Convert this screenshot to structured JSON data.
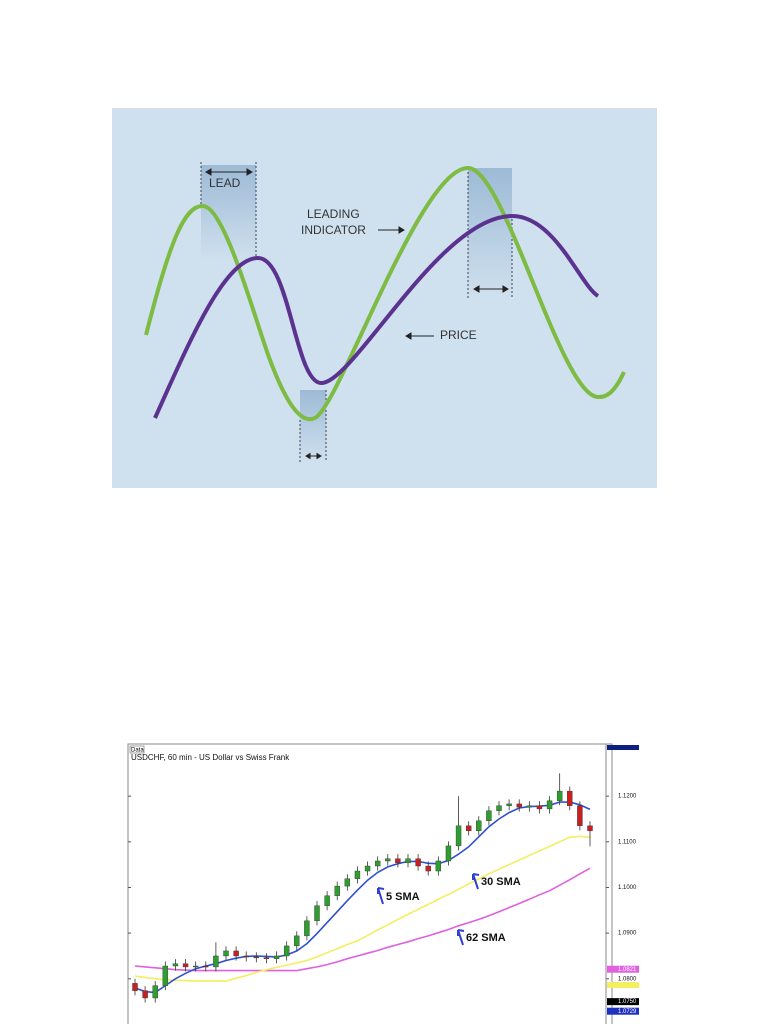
{
  "diagram": {
    "lead": "LEAD",
    "leading_indicator": [
      "LEADING",
      "INDICATOR"
    ],
    "price": "PRICE"
  },
  "chart_data": {
    "type": "candlestick",
    "tag": "Data",
    "title": "USDCHF, 60 min - US Dollar vs Swiss Frank",
    "up_color": "#2e9e2e",
    "down_color": "#c82020",
    "open": [
      1.079,
      1.0774,
      1.0758,
      1.0785,
      1.0828,
      1.0833,
      1.0826,
      1.0828,
      1.0826,
      1.085,
      1.0861,
      1.085,
      1.0848,
      1.0846,
      1.0844,
      1.085,
      1.0872,
      1.0894,
      1.0927,
      1.096,
      1.0982,
      1.1003,
      1.1019,
      1.1036,
      1.1047,
      1.1058,
      1.1063,
      1.1054,
      1.1063,
      1.1047,
      1.1036,
      1.1058,
      1.1091,
      1.1135,
      1.1124,
      1.1146,
      1.1168,
      1.1179,
      1.1183,
      1.1176,
      1.1179,
      1.1172,
      1.119,
      1.1211,
      1.1179,
      1.1135
    ],
    "high": [
      1.08,
      1.0784,
      1.0795,
      1.0838,
      1.0843,
      1.0843,
      1.0838,
      1.0838,
      1.088,
      1.0871,
      1.0871,
      1.086,
      1.0858,
      1.0856,
      1.086,
      1.0882,
      1.0904,
      1.0937,
      1.097,
      1.0992,
      1.1013,
      1.1029,
      1.1046,
      1.1057,
      1.1068,
      1.1073,
      1.1073,
      1.1073,
      1.1073,
      1.1057,
      1.1068,
      1.1101,
      1.12,
      1.1145,
      1.1156,
      1.1178,
      1.1189,
      1.1193,
      1.1193,
      1.1189,
      1.1189,
      1.12,
      1.125,
      1.1221,
      1.1189,
      1.1145
    ],
    "low": [
      1.0764,
      1.0748,
      1.0748,
      1.0775,
      1.0818,
      1.0816,
      1.0816,
      1.0816,
      1.0816,
      1.084,
      1.084,
      1.0838,
      1.0836,
      1.0834,
      1.0834,
      1.084,
      1.0862,
      1.0884,
      1.0917,
      1.095,
      1.0972,
      1.0993,
      1.1009,
      1.1026,
      1.1037,
      1.1048,
      1.1044,
      1.1044,
      1.1037,
      1.1026,
      1.1026,
      1.1048,
      1.1081,
      1.1114,
      1.1114,
      1.1136,
      1.1158,
      1.1169,
      1.1166,
      1.1166,
      1.1162,
      1.1162,
      1.118,
      1.1169,
      1.1125,
      1.109
    ],
    "close": [
      1.0774,
      1.0758,
      1.0785,
      1.0828,
      1.0833,
      1.0826,
      1.0828,
      1.0826,
      1.085,
      1.0861,
      1.085,
      1.0848,
      1.0846,
      1.0844,
      1.085,
      1.0872,
      1.0894,
      1.0927,
      1.096,
      1.0982,
      1.1003,
      1.1019,
      1.1036,
      1.1047,
      1.1058,
      1.1063,
      1.1054,
      1.1063,
      1.1047,
      1.1036,
      1.1058,
      1.1091,
      1.1135,
      1.1124,
      1.1146,
      1.1168,
      1.1179,
      1.1183,
      1.1176,
      1.1179,
      1.1172,
      1.119,
      1.1211,
      1.1179,
      1.1135,
      1.1124
    ],
    "series": [
      {
        "name": "5 SMA",
        "color": "#3050d0",
        "values": [
          1.078,
          1.0772,
          1.077,
          1.0785,
          1.08,
          1.0812,
          1.0822,
          1.0828,
          1.0833,
          1.084,
          1.0845,
          1.0849,
          1.085,
          1.0849,
          1.0848,
          1.0852,
          1.0861,
          1.0877,
          1.0899,
          1.0923,
          1.0947,
          1.0971,
          1.0994,
          1.1016,
          1.1033,
          1.1045,
          1.1052,
          1.1057,
          1.1057,
          1.1053,
          1.1052,
          1.1059,
          1.1073,
          1.1089,
          1.1111,
          1.1133,
          1.115,
          1.1164,
          1.1174,
          1.1177,
          1.1178,
          1.118,
          1.1187,
          1.1187,
          1.1181,
          1.1171
        ]
      },
      {
        "name": "30 SMA",
        "color": "#f4ee60",
        "values": [
          1.0806,
          1.0803,
          1.08,
          1.0798,
          1.0797,
          1.0796,
          1.0795,
          1.0795,
          1.0795,
          1.0795,
          1.0801,
          1.0807,
          1.0814,
          1.082,
          1.0825,
          1.083,
          1.0835,
          1.084,
          1.0848,
          1.0857,
          1.0866,
          1.0875,
          1.0883,
          1.0895,
          1.0907,
          1.0918,
          1.093,
          1.0941,
          1.0952,
          1.0963,
          1.0974,
          1.0985,
          1.0996,
          1.1008,
          1.1019,
          1.103,
          1.104,
          1.105,
          1.106,
          1.107,
          1.108,
          1.109,
          1.11,
          1.111,
          1.1112,
          1.111
        ]
      },
      {
        "name": "62 SMA",
        "color": "#e060e0",
        "values": [
          1.0828,
          1.0826,
          1.0824,
          1.0822,
          1.082,
          1.0819,
          1.0818,
          1.0818,
          1.0818,
          1.0818,
          1.0818,
          1.0818,
          1.0818,
          1.0818,
          1.0818,
          1.0818,
          1.0818,
          1.0822,
          1.0826,
          1.0831,
          1.0837,
          1.0844,
          1.085,
          1.0856,
          1.0862,
          1.0869,
          1.0875,
          1.0881,
          1.0888,
          1.0894,
          1.0901,
          1.0908,
          1.0916,
          1.0923,
          1.093,
          1.0938,
          1.0947,
          1.0956,
          1.0965,
          1.0974,
          1.0984,
          1.0993,
          1.1005,
          1.1017,
          1.103,
          1.1042
        ]
      }
    ],
    "ylim": [
      1.0701,
      1.1312
    ],
    "yticks": [
      {
        "value": 1.08,
        "label": "1.0800"
      },
      {
        "value": 1.09,
        "label": "1.0900"
      },
      {
        "value": 1.1,
        "label": "1.1000"
      },
      {
        "value": 1.11,
        "label": "1.1100"
      },
      {
        "value": 1.12,
        "label": "1.1200"
      }
    ],
    "price_markers": [
      {
        "value": 1.0821,
        "label": "1.0821",
        "color": "#e060e0"
      },
      {
        "value": 1.075,
        "label": "1.0750",
        "color": "#000000"
      },
      {
        "value": 1.0729,
        "label": "1.0729",
        "color": "#2030c0"
      }
    ]
  }
}
